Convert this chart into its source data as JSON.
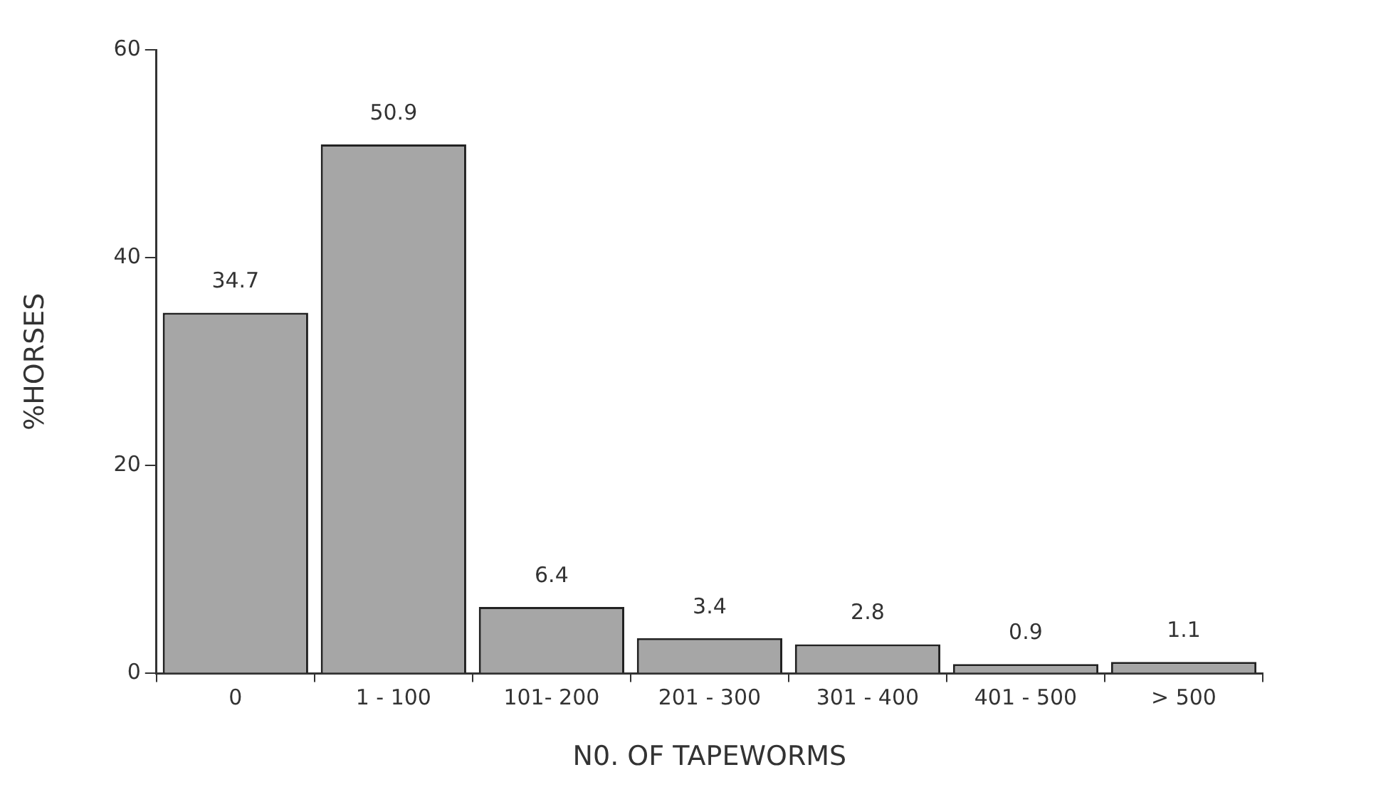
{
  "chart_data": {
    "type": "bar",
    "xlabel": "N0. OF TAPEWORMS",
    "ylabel": "%HORSES",
    "categories": [
      "0",
      "1 - 100",
      "101- 200",
      "201 - 300",
      "301 - 400",
      "401 - 500",
      "> 500"
    ],
    "values": [
      34.7,
      50.9,
      6.4,
      3.4,
      2.8,
      0.9,
      1.1
    ],
    "color": "#a6a6a6",
    "ylim": [
      0,
      60
    ],
    "yticks": [
      0,
      20,
      40,
      60
    ],
    "grid": false,
    "legend": false,
    "data_labels": true
  }
}
